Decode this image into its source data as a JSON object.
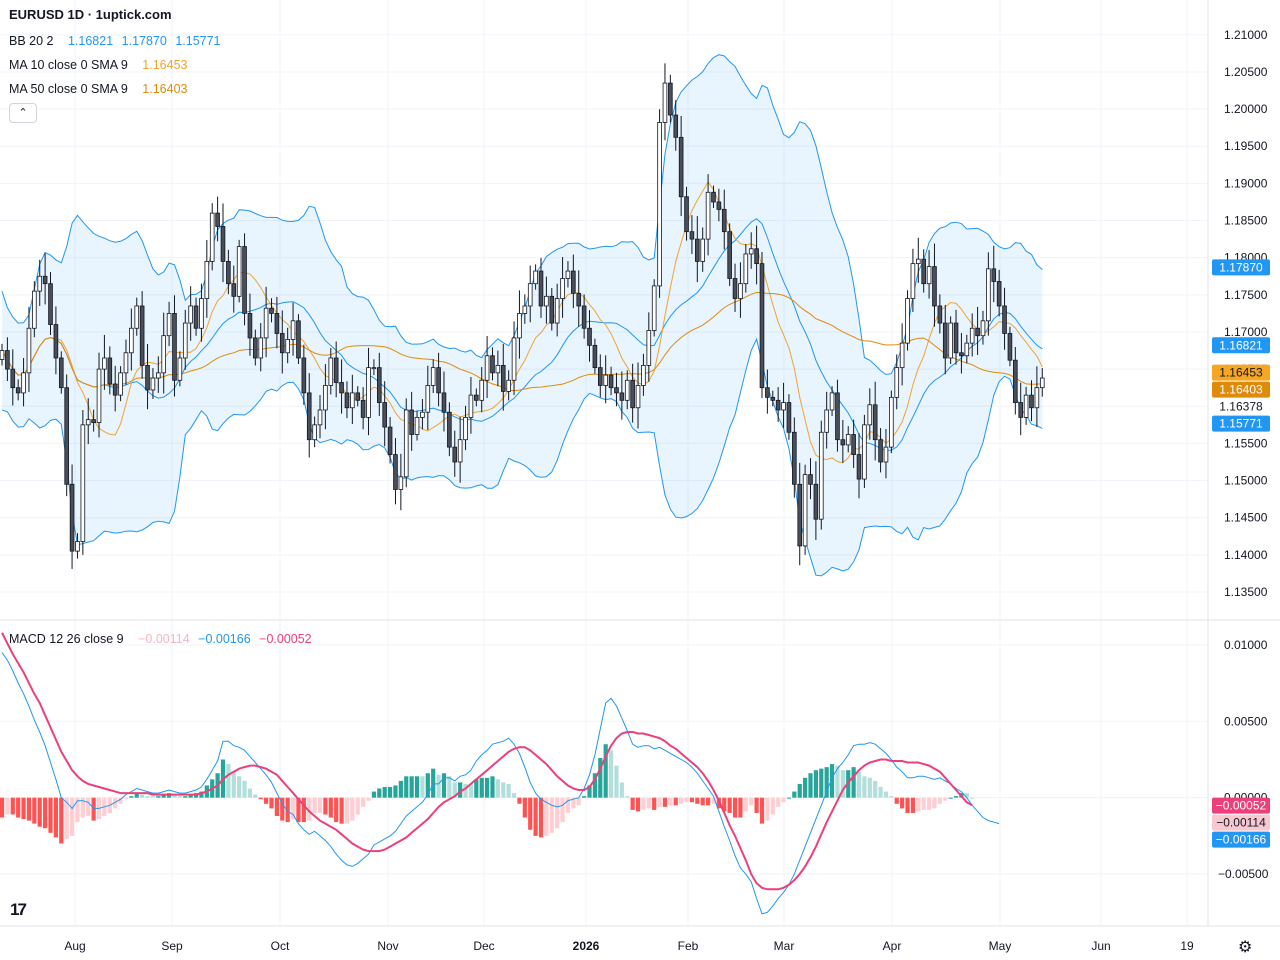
{
  "header": {
    "title": "EURUSD 1D · 1uptick.com"
  },
  "indicators": {
    "bb": {
      "label": "BB 20 2",
      "values": [
        "1.16821",
        "1.17870",
        "1.15771"
      ],
      "color": "#2196f3"
    },
    "ma10": {
      "label": "MA 10 close 0 SMA 9",
      "value": "1.16453",
      "color": "#f0a330"
    },
    "ma50": {
      "label": "MA 50 close 0 SMA 9",
      "value": "1.16403",
      "color": "#e08a0c"
    },
    "macd": {
      "label": "MACD 12 26 close 9",
      "values": [
        "−0.00114",
        "−0.00166",
        "−0.00052"
      ],
      "colors": [
        "#f7b6c0",
        "#2196f3",
        "#ec407a"
      ]
    }
  },
  "price_axis": {
    "ticks": [
      "1.21000",
      "1.20500",
      "1.20000",
      "1.19500",
      "1.19000",
      "1.18500",
      "1.18000",
      "1.17500",
      "1.17000",
      "1.16500",
      "1.16000",
      "1.15500",
      "1.15000",
      "1.14500",
      "1.14000",
      "1.13500"
    ],
    "badges": [
      {
        "text": "1.17870",
        "value": 1.1787,
        "bg": "#2196f3",
        "fg": "#ffffff"
      },
      {
        "text": "1.16821",
        "value": 1.16821,
        "bg": "#2196f3",
        "fg": "#ffffff"
      },
      {
        "text": "1.16453",
        "value": 1.16453,
        "bg": "#f5a623",
        "fg": "#131722"
      },
      {
        "text": "1.16403",
        "value": 1.16403,
        "bg": "#e08a0c",
        "fg": "#ffffff"
      },
      {
        "text": "1.16378",
        "value": 1.16378,
        "bg": "#ffffff",
        "fg": "#131722"
      },
      {
        "text": "1.15771",
        "value": 1.15771,
        "bg": "#2196f3",
        "fg": "#ffffff"
      }
    ]
  },
  "macd_axis": {
    "ticks": [
      "0.01000",
      "0.00500",
      "0.00000",
      "−0.00500"
    ],
    "badges": [
      {
        "text": "−0.00052",
        "value": -0.00052,
        "bg": "#ec407a",
        "fg": "#ffffff"
      },
      {
        "text": "−0.00114",
        "value": -0.00114,
        "bg": "#f7c8cf",
        "fg": "#131722"
      },
      {
        "text": "−0.00166",
        "value": -0.00166,
        "bg": "#2196f3",
        "fg": "#ffffff"
      }
    ]
  },
  "time_axis": {
    "labels": [
      "Aug",
      "Sep",
      "Oct",
      "Nov",
      "Dec",
      "2026",
      "Feb",
      "Mar",
      "Apr",
      "May",
      "Jun",
      "19"
    ]
  },
  "chart_data": {
    "type": "candlestick",
    "price_range": [
      1.1315,
      1.2128
    ],
    "macd_range": [
      -0.0084,
      0.0115
    ],
    "closes": [
      1.1675,
      1.165,
      1.1625,
      1.1618,
      1.1645,
      1.1705,
      1.1755,
      1.1775,
      1.1765,
      1.171,
      1.1665,
      1.1625,
      1.1495,
      1.1405,
      1.1418,
      1.1575,
      1.1582,
      1.1578,
      1.165,
      1.1665,
      1.163,
      1.1615,
      1.1645,
      1.1672,
      1.1705,
      1.1735,
      1.1655,
      1.1622,
      1.1638,
      1.1645,
      1.1695,
      1.1725,
      1.1635,
      1.1665,
      1.1712,
      1.1735,
      1.1705,
      1.1745,
      1.1795,
      1.186,
      1.1842,
      1.1795,
      1.1765,
      1.1748,
      1.1815,
      1.1725,
      1.1692,
      1.1665,
      1.1692,
      1.1732,
      1.1725,
      1.1698,
      1.1672,
      1.169,
      1.1715,
      1.1665,
      1.1618,
      1.1555,
      1.1575,
      1.1595,
      1.1628,
      1.1665,
      1.1632,
      1.1618,
      1.1598,
      1.1618,
      1.1608,
      1.1585,
      1.1652,
      1.1652,
      1.1605,
      1.1572,
      1.1535,
      1.1488,
      1.1505,
      1.1595,
      1.1562,
      1.1585,
      1.1592,
      1.1628,
      1.1652,
      1.1618,
      1.1592,
      1.1545,
      1.1525,
      1.1555,
      1.1585,
      1.1615,
      1.1608,
      1.1635,
      1.1668,
      1.1645,
      1.1655,
      1.162,
      1.1635,
      1.1692,
      1.1725,
      1.1735,
      1.1765,
      1.1782,
      1.1735,
      1.1748,
      1.1712,
      1.1745,
      1.1772,
      1.1782,
      1.1752,
      1.1735,
      1.1705,
      1.1682,
      1.1652,
      1.1628,
      1.1642,
      1.1625,
      1.1618,
      1.1608,
      1.1635,
      1.1598,
      1.1628,
      1.1655,
      1.1702,
      1.1762,
      1.1982,
      1.2035,
      1.1992,
      1.1962,
      1.1882,
      1.1835,
      1.1825,
      1.1795,
      1.1825,
      1.1888,
      1.1875,
      1.1865,
      1.1835,
      1.1772,
      1.1745,
      1.1765,
      1.1805,
      1.1812,
      1.1792,
      1.1625,
      1.1612,
      1.1608,
      1.1595,
      1.1605,
      1.1565,
      1.1495,
      1.1412,
      1.1508,
      1.1495,
      1.1448,
      1.1565,
      1.1595,
      1.1618,
      1.1555,
      1.1548,
      1.1562,
      1.1535,
      1.1502,
      1.1575,
      1.1602,
      1.1555,
      1.1525,
      1.1545,
      1.1612,
      1.1652,
      1.1685,
      1.1745,
      1.1792,
      1.1798,
      1.1765,
      1.1788,
      1.1735,
      1.1712,
      1.1665,
      1.1712,
      1.1672,
      1.1668,
      1.1685,
      1.1705,
      1.1695,
      1.1715,
      1.1785,
      1.1768,
      1.1735,
      1.1698,
      1.1662,
      1.1605,
      1.1585,
      1.1615,
      1.1598,
      1.1625,
      1.1638
    ],
    "macd_line": [
      0.0095,
      0.009,
      0.0083,
      0.0075,
      0.0068,
      0.006,
      0.0051,
      0.0043,
      0.0034,
      0.0023,
      0.0012,
      0.0,
      -0.0003,
      -0.0007,
      -0.0002,
      -0.0002,
      -0.0003,
      -0.0007,
      -0.0007,
      -0.0006,
      -0.0005,
      -0.0003,
      -0.0001,
      0.0002,
      0.0004,
      0.0006,
      0.0005,
      0.0004,
      0.0003,
      0.0003,
      0.0004,
      0.0005,
      0.0004,
      0.0003,
      0.0003,
      0.0004,
      0.0005,
      0.0007,
      0.0012,
      0.0018,
      0.0024,
      0.0037,
      0.0037,
      0.0034,
      0.0033,
      0.0031,
      0.0027,
      0.0023,
      0.0019,
      0.0015,
      0.001,
      0.0003,
      -0.0004,
      -0.0009,
      -0.0011,
      -0.0017,
      -0.0021,
      -0.0024,
      -0.0022,
      -0.0025,
      -0.0028,
      -0.0032,
      -0.0037,
      -0.0041,
      -0.0044,
      -0.0045,
      -0.0043,
      -0.004,
      -0.0037,
      -0.0031,
      -0.0029,
      -0.0027,
      -0.0025,
      -0.0022,
      -0.0017,
      -0.0012,
      -0.0009,
      -0.0006,
      -0.0003,
      0.0002,
      0.0009,
      0.0009,
      0.0013,
      0.0013,
      0.0011,
      0.0014,
      0.0015,
      0.0018,
      0.0024,
      0.0028,
      0.0031,
      0.0035,
      0.0036,
      0.0037,
      0.0039,
      0.0035,
      0.0029,
      0.002,
      0.001,
      0.0003,
      -0.0001,
      -0.0003,
      -0.0005,
      -0.0006,
      -0.0005,
      -0.0002,
      -0.0001,
      0.0,
      0.0006,
      0.0015,
      0.0028,
      0.0045,
      0.0062,
      0.0065,
      0.006,
      0.0052,
      0.0044,
      0.0035,
      0.0033,
      0.0034,
      0.0034,
      0.0032,
      0.0033,
      0.0031,
      0.0029,
      0.0027,
      0.0025,
      0.0023,
      0.002,
      0.0016,
      0.0011,
      0.0006,
      0.0001,
      -0.0009,
      -0.0019,
      -0.0028,
      -0.0038,
      -0.0046,
      -0.005,
      -0.0055,
      -0.0066,
      -0.0076,
      -0.0075,
      -0.0071,
      -0.0066,
      -0.0062,
      -0.0057,
      -0.005,
      -0.0041,
      -0.0032,
      -0.0023,
      -0.0014,
      -0.0005,
      0.0004,
      0.0013,
      0.0019,
      0.0023,
      0.0028,
      0.0034,
      0.0035,
      0.0035,
      0.0036,
      0.0035,
      0.0032,
      0.0029,
      0.0025,
      0.002,
      0.0017,
      0.0013,
      0.0013,
      0.0014,
      0.0014,
      0.0013,
      0.0012,
      0.0013,
      0.0011,
      0.0009,
      0.0006,
      0.0004,
      0.0,
      -0.0005,
      -0.0009,
      -0.0013,
      -0.0015,
      -0.0016,
      -0.0017
    ],
    "signal_line": [
      0.0108,
      0.0101,
      0.0094,
      0.0088,
      0.0082,
      0.0075,
      0.0068,
      0.0062,
      0.0054,
      0.0046,
      0.0038,
      0.003,
      0.0024,
      0.0018,
      0.0014,
      0.0011,
      0.0009,
      0.0008,
      0.0007,
      0.0006,
      0.0005,
      0.0004,
      0.0003,
      0.0003,
      0.0003,
      0.0003,
      0.0003,
      0.0003,
      0.0002,
      0.0002,
      0.0002,
      0.0002,
      0.0002,
      0.0002,
      0.0002,
      0.0002,
      0.0002,
      0.0003,
      0.0004,
      0.0006,
      0.0008,
      0.0012,
      0.0015,
      0.0017,
      0.0019,
      0.002,
      0.0021,
      0.0021,
      0.002,
      0.0019,
      0.0017,
      0.0015,
      0.0011,
      0.0007,
      0.0003,
      -0.0001,
      -0.0005,
      -0.0009,
      -0.0012,
      -0.0015,
      -0.0017,
      -0.0019,
      -0.0021,
      -0.0024,
      -0.0027,
      -0.003,
      -0.0032,
      -0.0034,
      -0.0035,
      -0.0035,
      -0.0035,
      -0.0034,
      -0.0032,
      -0.003,
      -0.0028,
      -0.0026,
      -0.0023,
      -0.002,
      -0.0017,
      -0.0014,
      -0.001,
      -0.0006,
      -0.0003,
      -0.0001,
      0.0001,
      0.0004,
      0.0006,
      0.0009,
      0.0012,
      0.0015,
      0.0018,
      0.0021,
      0.0024,
      0.0027,
      0.003,
      0.0032,
      0.0033,
      0.0033,
      0.0031,
      0.0028,
      0.0025,
      0.0022,
      0.0018,
      0.0014,
      0.0011,
      0.0008,
      0.0006,
      0.0005,
      0.0005,
      0.0007,
      0.0012,
      0.0019,
      0.0027,
      0.0034,
      0.0039,
      0.0042,
      0.0043,
      0.0043,
      0.0042,
      0.0042,
      0.0041,
      0.004,
      0.0039,
      0.0037,
      0.0034,
      0.0032,
      0.0029,
      0.0026,
      0.0023,
      0.002,
      0.0016,
      0.0011,
      0.0005,
      -0.0002,
      -0.001,
      -0.0018,
      -0.0025,
      -0.0033,
      -0.0041,
      -0.005,
      -0.0056,
      -0.0059,
      -0.006,
      -0.006,
      -0.006,
      -0.0059,
      -0.0057,
      -0.0054,
      -0.005,
      -0.0045,
      -0.0039,
      -0.0032,
      -0.0024,
      -0.0016,
      -0.0009,
      -0.0002,
      0.0005,
      0.001,
      0.0014,
      0.0018,
      0.0021,
      0.0023,
      0.0024,
      0.0025,
      0.0025,
      0.0024,
      0.0024,
      0.0024,
      0.0023,
      0.0023,
      0.0023,
      0.0022,
      0.0021,
      0.0019,
      0.0017,
      0.0013,
      0.0009,
      0.0005,
      0.0001,
      -0.0003,
      -0.0005
    ]
  }
}
